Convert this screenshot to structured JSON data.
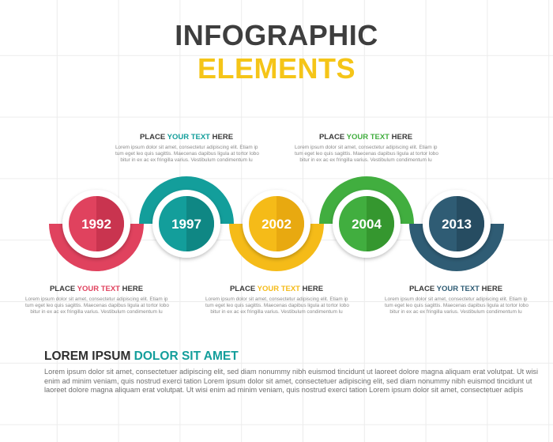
{
  "title": {
    "line1": "INFOGRAPHIC",
    "line2": "ELEMENTS",
    "line2_color": "#f5c518"
  },
  "milestones": [
    {
      "year": "1992",
      "color": "#e0425e",
      "dark": "#c9344f"
    },
    {
      "year": "1997",
      "color": "#139e9b",
      "dark": "#0f8784"
    },
    {
      "year": "2002",
      "color": "#f5bb18",
      "dark": "#e8a910"
    },
    {
      "year": "2004",
      "color": "#41ae3f",
      "dark": "#35972f"
    },
    {
      "year": "2013",
      "color": "#2f5c74",
      "dark": "#264c61"
    }
  ],
  "text_blocks": [
    {
      "head_a": "PLACE ",
      "accent": "YOUR TEXT",
      "head_b": " HERE",
      "accent_color": "#e0425e",
      "lines": [
        "Lorem ipsum dolor sit amet, consectetur adipiscing elit. Etiam ip",
        "tum eget leo quis sagittis. Maecenas dapibus ligula at tortor lobo",
        "bitur in ex ac ex fringilla varius. Vestibulum condimentum lu"
      ]
    },
    {
      "head_a": "PLACE ",
      "accent": "YOUR TEXT",
      "head_b": " HERE",
      "accent_color": "#139e9b",
      "lines": [
        "Lorem ipsum dolor sit amet, consectetur adipiscing elit. Etiam ip",
        "tum eget leo quis sagittis. Maecenas dapibus ligula at tortor lobo",
        "bitur in ex ac ex fringilla varius. Vestibulum condimentum lu"
      ]
    },
    {
      "head_a": "PLACE ",
      "accent": "YOUR TEXT",
      "head_b": " HERE",
      "accent_color": "#f5bb18",
      "lines": [
        "Lorem ipsum dolor sit amet, consectetur adipiscing elit. Etiam ip",
        "tum eget leo quis sagittis. Maecenas dapibus ligula at tortor lobo",
        "bitur in ex ac ex fringilla varius. Vestibulum condimentum lu"
      ]
    },
    {
      "head_a": "PLACE ",
      "accent": "YOUR TEXT",
      "head_b": " HERE",
      "accent_color": "#41ae3f",
      "lines": [
        "Lorem ipsum dolor sit amet, consectetur adipiscing elit. Etiam ip",
        "tum eget leo quis sagittis. Maecenas dapibus ligula at tortor lobo",
        "bitur in ex ac ex fringilla varius. Vestibulum condimentum lu"
      ]
    },
    {
      "head_a": "PLACE ",
      "accent": "YOUR TEXT",
      "head_b": " HERE",
      "accent_color": "#2f5c74",
      "lines": [
        "Lorem ipsum dolor sit amet, consectetur adipiscing elit. Etiam ip",
        "tum eget leo quis sagittis. Maecenas dapibus ligula at tortor lobo",
        "bitur in ex ac ex fringilla varius. Vestibulum condimentum lu"
      ]
    }
  ],
  "footer": {
    "heading_a": "LOREM IPSUM ",
    "heading_b": "DOLOR SIT AMET",
    "heading_b_color": "#139e9b",
    "paragraph": [
      "Lorem ipsum dolor sit amet, consectetuer adipiscing elit, sed diam nonummy nibh euismod tincidunt ut laoreet dolore magna aliquam erat volutpat. Ut wisi",
      "enim ad minim veniam, quis nostrud exerci tation Lorem ipsum dolor sit amet, consectetuer adipiscing elit, sed diam nonummy nibh euismod tincidunt ut",
      "laoreet dolore magna aliquam erat volutpat. Ut wisi enim ad minim veniam, quis nostrud exerci tation Lorem ipsum dolor sit amet, consectetuer adipis"
    ]
  }
}
